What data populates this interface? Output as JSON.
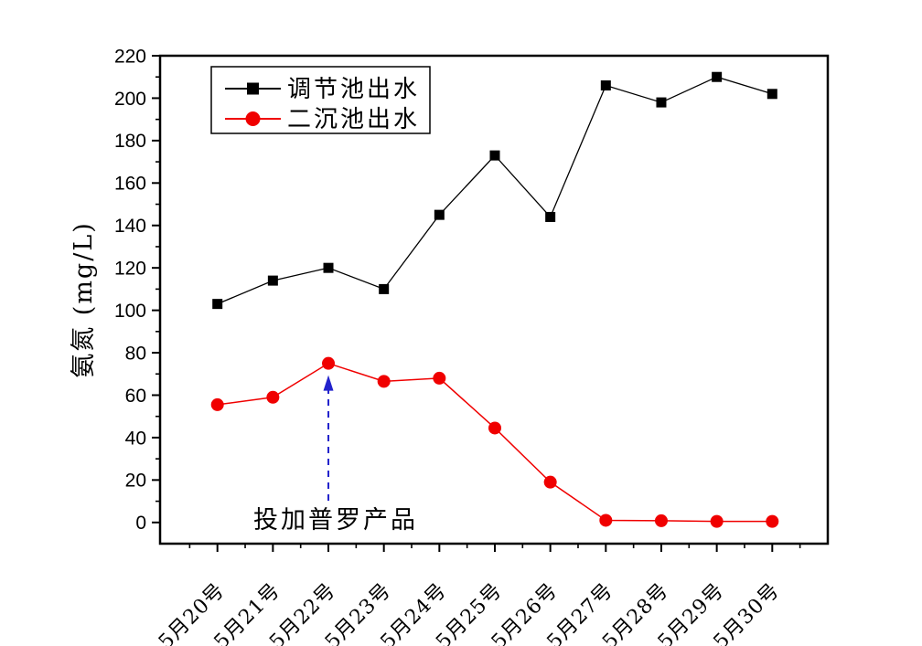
{
  "chart_data": {
    "type": "line",
    "title": "",
    "xlabel": "",
    "ylabel": "氨氮 (mg/L)",
    "categories": [
      "5月20号",
      "5月21号",
      "5月22号",
      "5月23号",
      "5月24号",
      "5月25号",
      "5月26号",
      "5月27号",
      "5月28号",
      "5月29号",
      "5月30号"
    ],
    "series": [
      {
        "name": "调节池出水",
        "color": "#000000",
        "marker": "square",
        "values": [
          103,
          114,
          120,
          110,
          145,
          173,
          144,
          206,
          198,
          210,
          202
        ]
      },
      {
        "name": "二沉池出水",
        "color": "#f00000",
        "marker": "circle",
        "values": [
          55.5,
          59,
          75,
          66.5,
          68,
          44.5,
          19,
          1,
          0.8,
          0.5,
          0.5
        ]
      }
    ],
    "ylim": [
      -10,
      220
    ],
    "ytick_major_start": 0,
    "ytick_major_end": 220,
    "ytick_major_step": 20,
    "ytick_minor_step": 10,
    "grid": false,
    "legend_position": "top-left",
    "annotation": {
      "text": "投加普罗产品",
      "target_series": "二沉池出水",
      "target_category": "5月22号",
      "arrow_color": "#2222cc",
      "arrow_style": "dashed"
    }
  }
}
